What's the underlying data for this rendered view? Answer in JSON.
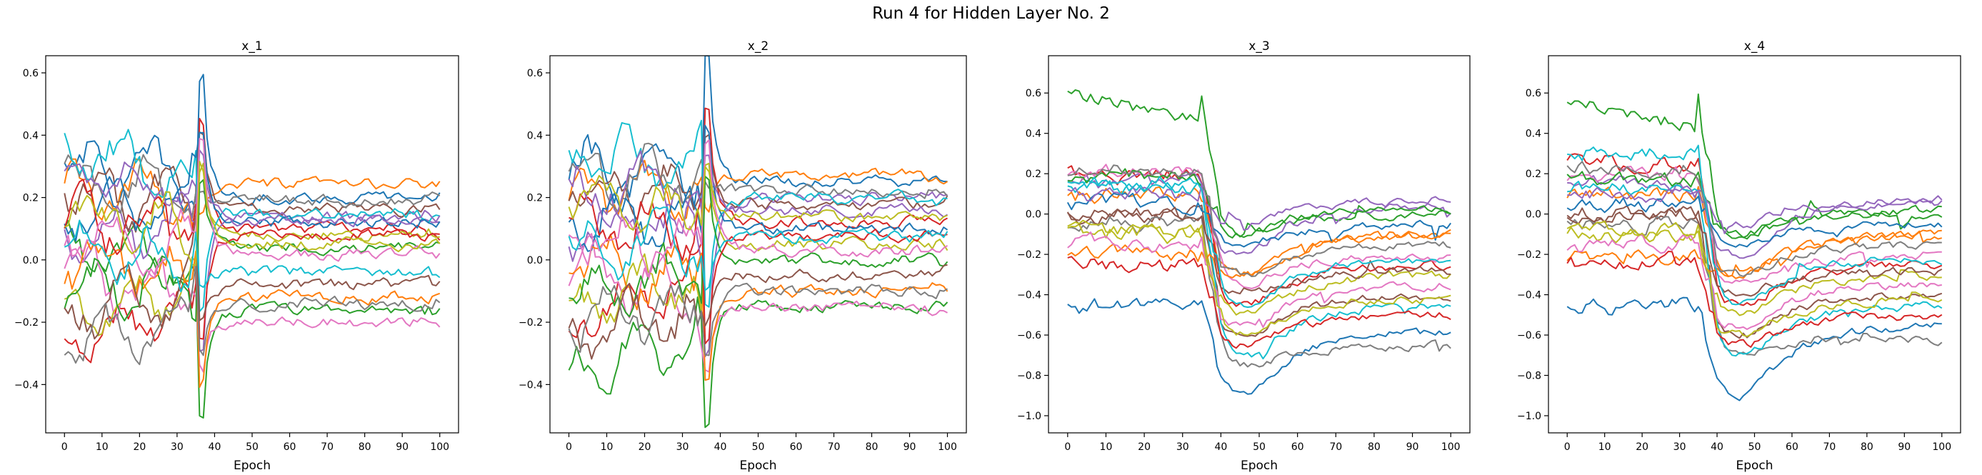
{
  "figure": {
    "suptitle": "Run 4 for Hidden Layer No. 2"
  },
  "palette": [
    "#1f77b4",
    "#ff7f0e",
    "#2ca02c",
    "#d62728",
    "#9467bd",
    "#8c564b",
    "#e377c2",
    "#7f7f7f",
    "#bcbd22",
    "#17becf"
  ],
  "chart_data": [
    {
      "type": "line",
      "title": "x_1",
      "xlabel": "Epoch",
      "ylabel": "",
      "xlim": [
        0,
        100
      ],
      "ylim": [
        -0.5,
        0.6
      ],
      "xticks": [
        0,
        10,
        20,
        30,
        40,
        50,
        60,
        70,
        80,
        90,
        100
      ],
      "yticks": [
        -0.4,
        -0.2,
        0.0,
        0.2,
        0.4,
        0.6
      ],
      "ytick_labels": [
        "−0.4",
        "−0.2",
        "0.0",
        "0.2",
        "0.4",
        "0.6"
      ],
      "grid": false,
      "event_epoch": 37,
      "series": [
        {
          "start": 0.3,
          "end": 0.2,
          "spike": 0.58
        },
        {
          "start": 0.2,
          "end": 0.24,
          "spike": 0.15
        },
        {
          "start": 0.05,
          "end": -0.16,
          "spike": -0.5
        },
        {
          "start": -0.28,
          "end": 0.1,
          "spike": 0.45
        },
        {
          "start": 0.1,
          "end": 0.14,
          "spike": -0.3
        },
        {
          "start": 0.22,
          "end": 0.16,
          "spike": 0.4
        },
        {
          "start": -0.05,
          "end": -0.2,
          "spike": -0.35
        },
        {
          "start": 0.25,
          "end": 0.19,
          "spike": 0.2
        },
        {
          "start": -0.2,
          "end": 0.08,
          "spike": 0.3
        },
        {
          "start": 0.35,
          "end": 0.15,
          "spike": -0.15
        },
        {
          "start": 0.18,
          "end": 0.12,
          "spike": 0.42
        },
        {
          "start": 0.0,
          "end": -0.12,
          "spike": -0.4
        },
        {
          "start": -0.1,
          "end": 0.04,
          "spike": 0.25
        },
        {
          "start": 0.12,
          "end": 0.08,
          "spike": -0.25
        },
        {
          "start": 0.28,
          "end": 0.13,
          "spike": 0.35
        },
        {
          "start": -0.15,
          "end": -0.08,
          "spike": -0.2
        },
        {
          "start": 0.08,
          "end": 0.02,
          "spike": 0.38
        },
        {
          "start": -0.25,
          "end": -0.14,
          "spike": -0.3
        },
        {
          "start": 0.15,
          "end": 0.05,
          "spike": 0.3
        },
        {
          "start": 0.05,
          "end": -0.04,
          "spike": -0.1
        }
      ]
    },
    {
      "type": "line",
      "title": "x_2",
      "xlabel": "Epoch",
      "ylabel": "",
      "xlim": [
        0,
        100
      ],
      "ylim": [
        -0.5,
        0.6
      ],
      "xticks": [
        0,
        10,
        20,
        30,
        40,
        50,
        60,
        70,
        80,
        90,
        100
      ],
      "yticks": [
        -0.4,
        -0.2,
        0.0,
        0.2,
        0.4,
        0.6
      ],
      "ytick_labels": [
        "−0.4",
        "−0.2",
        "0.0",
        "0.2",
        "0.4",
        "0.6"
      ],
      "grid": false,
      "event_epoch": 37,
      "series": [
        {
          "start": 0.3,
          "end": 0.25,
          "spike": 0.64
        },
        {
          "start": 0.2,
          "end": 0.27,
          "spike": 0.15
        },
        {
          "start": -0.35,
          "end": -0.15,
          "spike": -0.52
        },
        {
          "start": -0.2,
          "end": 0.12,
          "spike": 0.5
        },
        {
          "start": 0.1,
          "end": 0.2,
          "spike": -0.3
        },
        {
          "start": 0.25,
          "end": 0.18,
          "spike": 0.4
        },
        {
          "start": -0.05,
          "end": -0.15,
          "spike": -0.35
        },
        {
          "start": 0.28,
          "end": 0.22,
          "spike": 0.25
        },
        {
          "start": -0.15,
          "end": 0.05,
          "spike": 0.3
        },
        {
          "start": 0.35,
          "end": 0.2,
          "spike": -0.15
        },
        {
          "start": 0.15,
          "end": 0.1,
          "spike": 0.42
        },
        {
          "start": 0.0,
          "end": -0.1,
          "spike": -0.4
        },
        {
          "start": -0.1,
          "end": 0.0,
          "spike": 0.25
        },
        {
          "start": 0.12,
          "end": 0.08,
          "spike": -0.25
        },
        {
          "start": 0.22,
          "end": 0.16,
          "spike": 0.35
        },
        {
          "start": -0.25,
          "end": -0.05,
          "spike": -0.2
        },
        {
          "start": 0.08,
          "end": 0.03,
          "spike": 0.38
        },
        {
          "start": -0.2,
          "end": -0.1,
          "spike": -0.3
        },
        {
          "start": 0.18,
          "end": 0.14,
          "spike": 0.3
        },
        {
          "start": 0.05,
          "end": 0.07,
          "spike": -0.1
        }
      ]
    },
    {
      "type": "line",
      "title": "x_3",
      "xlabel": "Epoch",
      "ylabel": "",
      "xlim": [
        0,
        100
      ],
      "ylim": [
        -1.0,
        0.7
      ],
      "xticks": [
        0,
        10,
        20,
        30,
        40,
        50,
        60,
        70,
        80,
        90,
        100
      ],
      "yticks": [
        -1.0,
        -0.8,
        -0.6,
        -0.4,
        -0.2,
        0.0,
        0.2,
        0.4,
        0.6
      ],
      "ytick_labels": [
        "−1.0",
        "−0.8",
        "−0.6",
        "−0.4",
        "−0.2",
        "0.0",
        "0.2",
        "0.4",
        "0.6"
      ],
      "grid": false,
      "event_epoch": 38,
      "series": [
        {
          "start": -0.45,
          "end": -0.58,
          "low": -0.88
        },
        {
          "start": 0.1,
          "end": -0.1,
          "low": -0.3
        },
        {
          "start": 0.6,
          "end": 0.0,
          "low": -0.1
        },
        {
          "start": 0.2,
          "end": -0.25,
          "low": -0.45
        },
        {
          "start": 0.15,
          "end": 0.05,
          "low": -0.2
        },
        {
          "start": 0.0,
          "end": -0.4,
          "low": -0.6
        },
        {
          "start": 0.2,
          "end": -0.2,
          "low": -0.35
        },
        {
          "start": -0.05,
          "end": -0.65,
          "low": -0.75
        },
        {
          "start": -0.1,
          "end": -0.3,
          "low": -0.5
        },
        {
          "start": 0.12,
          "end": -0.45,
          "low": -0.7
        },
        {
          "start": 0.05,
          "end": -0.05,
          "low": -0.15
        },
        {
          "start": -0.2,
          "end": -0.1,
          "low": -0.3
        },
        {
          "start": 0.18,
          "end": 0.02,
          "low": -0.1
        },
        {
          "start": -0.25,
          "end": -0.5,
          "low": -0.65
        },
        {
          "start": 0.1,
          "end": 0.06,
          "low": -0.05
        },
        {
          "start": 0.0,
          "end": -0.28,
          "low": -0.4
        },
        {
          "start": -0.15,
          "end": -0.35,
          "low": -0.55
        },
        {
          "start": 0.22,
          "end": -0.15,
          "low": -0.3
        },
        {
          "start": -0.08,
          "end": -0.42,
          "low": -0.6
        },
        {
          "start": 0.15,
          "end": -0.22,
          "low": -0.45
        }
      ]
    },
    {
      "type": "line",
      "title": "x_4",
      "xlabel": "Epoch",
      "ylabel": "",
      "xlim": [
        0,
        100
      ],
      "ylim": [
        -1.0,
        0.7
      ],
      "xticks": [
        0,
        10,
        20,
        30,
        40,
        50,
        60,
        70,
        80,
        90,
        100
      ],
      "yticks": [
        -1.0,
        -0.8,
        -0.6,
        -0.4,
        -0.2,
        0.0,
        0.2,
        0.4,
        0.6
      ],
      "ytick_labels": [
        "−1.0",
        "−0.8",
        "−0.6",
        "−0.4",
        "−0.2",
        "0.0",
        "0.2",
        "0.4",
        "0.6"
      ],
      "grid": false,
      "event_epoch": 38,
      "series": [
        {
          "start": -0.45,
          "end": -0.55,
          "low": -0.9
        },
        {
          "start": 0.1,
          "end": -0.1,
          "low": -0.3
        },
        {
          "start": 0.56,
          "end": 0.0,
          "low": -0.1
        },
        {
          "start": 0.25,
          "end": -0.25,
          "low": -0.45
        },
        {
          "start": 0.15,
          "end": 0.08,
          "low": -0.2
        },
        {
          "start": 0.0,
          "end": -0.4,
          "low": -0.6
        },
        {
          "start": 0.2,
          "end": -0.2,
          "low": -0.35
        },
        {
          "start": -0.05,
          "end": -0.62,
          "low": -0.7
        },
        {
          "start": -0.1,
          "end": -0.3,
          "low": -0.5
        },
        {
          "start": 0.12,
          "end": -0.45,
          "low": -0.7
        },
        {
          "start": 0.05,
          "end": -0.05,
          "low": -0.15
        },
        {
          "start": -0.2,
          "end": -0.1,
          "low": -0.3
        },
        {
          "start": 0.18,
          "end": 0.02,
          "low": -0.1
        },
        {
          "start": -0.25,
          "end": -0.5,
          "low": -0.65
        },
        {
          "start": 0.1,
          "end": 0.06,
          "low": -0.05
        },
        {
          "start": 0.0,
          "end": -0.28,
          "low": -0.4
        },
        {
          "start": -0.15,
          "end": -0.35,
          "low": -0.55
        },
        {
          "start": 0.22,
          "end": -0.15,
          "low": -0.3
        },
        {
          "start": -0.08,
          "end": -0.42,
          "low": -0.6
        },
        {
          "start": 0.3,
          "end": -0.22,
          "low": -0.45
        }
      ]
    }
  ]
}
